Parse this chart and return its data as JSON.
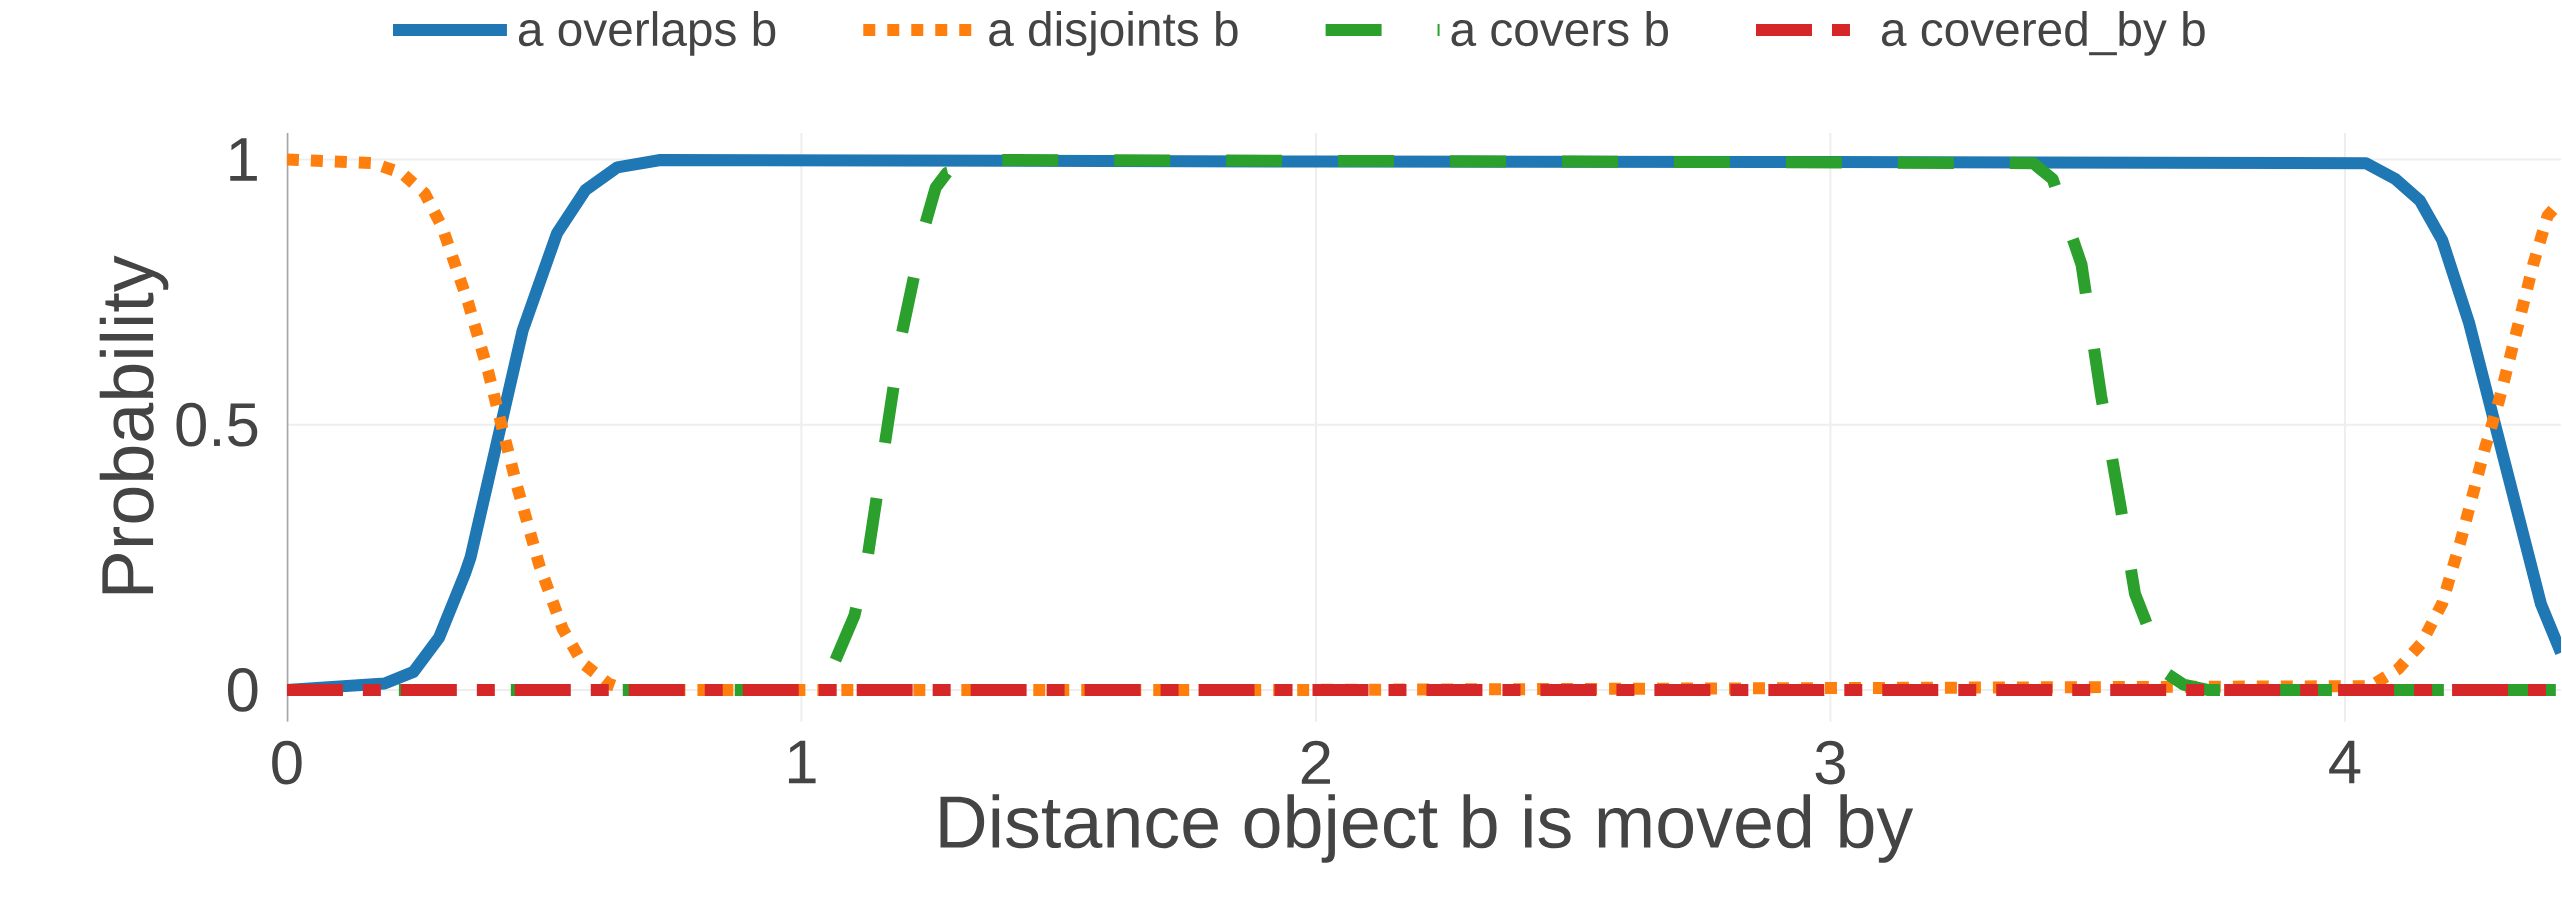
{
  "chart_data": {
    "type": "line",
    "xlabel": "Distance object b is moved by",
    "ylabel": "Probability",
    "xlim": [
      0,
      4.42
    ],
    "ylim": [
      -0.06,
      1.05
    ],
    "xticks": [
      0,
      1,
      2,
      3,
      4
    ],
    "yticks": [
      0,
      0.5,
      1
    ],
    "grid": true,
    "legend": "top",
    "marker": "none",
    "series": [
      {
        "name": "a overlaps b",
        "color": "#1f77b4",
        "line_style": "solid",
        "x": [
          0,
          0.19,
          0.246,
          0.296,
          0.346,
          0.357,
          0.458,
          0.525,
          0.58,
          0.642,
          0.726,
          2.0,
          3.0,
          4.041,
          4.098,
          4.146,
          4.189,
          4.241,
          4.381,
          4.42
        ],
        "values": [
          0,
          0.012,
          0.034,
          0.099,
          0.219,
          0.25,
          0.677,
          0.861,
          0.942,
          0.985,
          0.999,
          0.996,
          0.995,
          0.993,
          0.963,
          0.922,
          0.848,
          0.693,
          0.162,
          0.07
        ]
      },
      {
        "name": "a disjoints b",
        "color": "#ff7f0e",
        "line_style": "dotted",
        "x": [
          0,
          0.168,
          0.224,
          0.268,
          0.302,
          0.352,
          0.391,
          0.413,
          0.447,
          0.491,
          0.536,
          0.575,
          0.625,
          0.659,
          2.0,
          4.05,
          4.103,
          4.149,
          4.189,
          4.225,
          4.272,
          4.3,
          4.338,
          4.366,
          4.394,
          4.42
        ],
        "values": [
          1.0,
          0.993,
          0.974,
          0.936,
          0.872,
          0.731,
          0.601,
          0.515,
          0.385,
          0.234,
          0.115,
          0.05,
          0.012,
          0,
          0,
          0.007,
          0.039,
          0.088,
          0.163,
          0.281,
          0.455,
          0.547,
          0.693,
          0.802,
          0.894,
          0.922
        ]
      },
      {
        "name": "a covers b",
        "color": "#2ca02c",
        "line_style": "dashed",
        "x": [
          0,
          1.0,
          1.066,
          1.103,
          1.127,
          1.194,
          1.239,
          1.261,
          1.283,
          1.384,
          2.5,
          3.394,
          3.432,
          3.469,
          3.488,
          3.526,
          3.564,
          3.592,
          3.611,
          3.649,
          3.686,
          3.733,
          4.42
        ],
        "values": [
          0,
          0,
          0.056,
          0.14,
          0.24,
          0.666,
          0.872,
          0.947,
          0.975,
          0.999,
          0.996,
          0.993,
          0.963,
          0.856,
          0.802,
          0.555,
          0.345,
          0.181,
          0.134,
          0.034,
          0.01,
          0,
          0
        ]
      },
      {
        "name": "a covered_by b",
        "color": "#d62728",
        "line_style": "dashdot",
        "x": [
          0,
          1.0,
          2.0,
          3.0,
          4.0,
          4.42
        ],
        "values": [
          0,
          0,
          0,
          0,
          0,
          0
        ]
      }
    ]
  }
}
